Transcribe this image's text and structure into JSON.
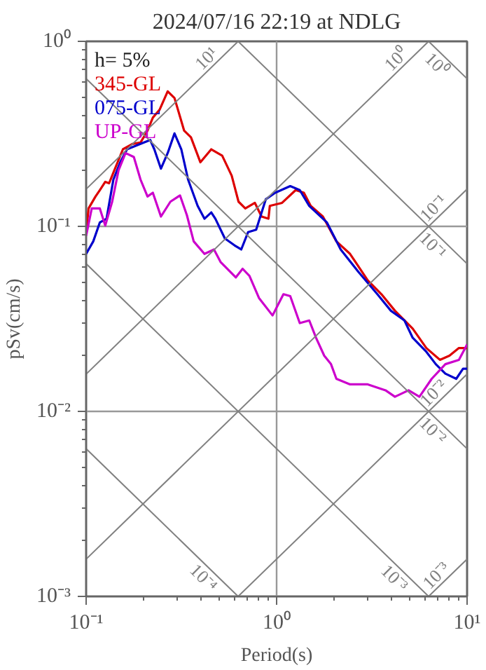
{
  "chart_data": {
    "type": "line",
    "title": "2024/07/16 22:19 at NDLG",
    "xlabel": "Period(s)",
    "ylabel": "pSv(cm/s)",
    "annotations": [
      "h= 5%"
    ],
    "log": "xy",
    "grid": true,
    "legend": "top left",
    "xlim": [
      0.1,
      10
    ],
    "ylim": [
      0.001,
      1
    ],
    "xticks": [
      {
        "value": 0.1,
        "label": "10⁻¹"
      },
      {
        "value": 1,
        "label": "10⁰"
      },
      {
        "value": 10,
        "label": "10¹"
      }
    ],
    "yticks": [
      {
        "value": 0.001,
        "label": "10⁻³"
      },
      {
        "value": 0.01,
        "label": "10⁻²"
      },
      {
        "value": 0.1,
        "label": "10⁻¹"
      },
      {
        "value": 1,
        "label": "10⁰"
      }
    ],
    "series": [
      {
        "name": "345-GL",
        "color": "#dd0000",
        "x": [
          0.1,
          0.103,
          0.112,
          0.118,
          0.126,
          0.132,
          0.139,
          0.156,
          0.175,
          0.193,
          0.21,
          0.224,
          0.243,
          0.268,
          0.291,
          0.327,
          0.355,
          0.398,
          0.454,
          0.518,
          0.581,
          0.631,
          0.685,
          0.769,
          0.834,
          0.906,
          0.921,
          1.068,
          1.259,
          1.39,
          1.51,
          1.75,
          2.06,
          2.43,
          3.01,
          3.55,
          4.18,
          5.18,
          6.11,
          7.2,
          8.08,
          9.06,
          10
        ],
        "values": [
          0.093,
          0.125,
          0.145,
          0.157,
          0.174,
          0.171,
          0.195,
          0.261,
          0.279,
          0.284,
          0.329,
          0.387,
          0.427,
          0.537,
          0.494,
          0.329,
          0.303,
          0.222,
          0.261,
          0.241,
          0.188,
          0.136,
          0.125,
          0.134,
          0.113,
          0.11,
          0.129,
          0.134,
          0.157,
          0.152,
          0.129,
          0.113,
          0.083,
          0.071,
          0.051,
          0.043,
          0.035,
          0.028,
          0.022,
          0.019,
          0.02,
          0.022,
          0.022
        ]
      },
      {
        "name": "075-GL",
        "color": "#0000cc",
        "x": [
          0.1,
          0.109,
          0.118,
          0.128,
          0.139,
          0.151,
          0.164,
          0.193,
          0.217,
          0.228,
          0.247,
          0.268,
          0.291,
          0.316,
          0.343,
          0.385,
          0.418,
          0.454,
          0.477,
          0.535,
          0.601,
          0.652,
          0.708,
          0.781,
          0.877,
          0.984,
          1.179,
          1.323,
          1.484,
          1.837,
          2.17,
          2.68,
          3.38,
          3.98,
          4.69,
          5.18,
          6.11,
          6.85,
          7.69,
          8.77,
          9.52,
          10
        ],
        "values": [
          0.071,
          0.083,
          0.105,
          0.11,
          0.179,
          0.222,
          0.261,
          0.279,
          0.293,
          0.261,
          0.205,
          0.249,
          0.318,
          0.261,
          0.179,
          0.129,
          0.11,
          0.119,
          0.11,
          0.086,
          0.079,
          0.075,
          0.093,
          0.096,
          0.14,
          0.152,
          0.165,
          0.157,
          0.129,
          0.105,
          0.075,
          0.057,
          0.043,
          0.035,
          0.031,
          0.025,
          0.021,
          0.018,
          0.016,
          0.015,
          0.017,
          0.017
        ]
      },
      {
        "name": "UP-GL",
        "color": "#cc00cc",
        "x": [
          0.1,
          0.107,
          0.118,
          0.126,
          0.137,
          0.148,
          0.161,
          0.178,
          0.193,
          0.21,
          0.224,
          0.247,
          0.277,
          0.311,
          0.338,
          0.367,
          0.418,
          0.469,
          0.509,
          0.611,
          0.663,
          0.72,
          0.808,
          0.952,
          1.086,
          1.179,
          1.323,
          1.484,
          1.61,
          1.778,
          1.93,
          2.06,
          2.43,
          3.01,
          3.73,
          4.18,
          4.93,
          5.62,
          6.52,
          7.69,
          9.06,
          10
        ],
        "values": [
          0.089,
          0.125,
          0.125,
          0.101,
          0.136,
          0.201,
          0.249,
          0.237,
          0.179,
          0.145,
          0.152,
          0.113,
          0.136,
          0.147,
          0.115,
          0.083,
          0.071,
          0.075,
          0.064,
          0.053,
          0.059,
          0.054,
          0.041,
          0.033,
          0.043,
          0.042,
          0.03,
          0.031,
          0.025,
          0.02,
          0.018,
          0.015,
          0.014,
          0.014,
          0.013,
          0.012,
          0.013,
          0.012,
          0.015,
          0.018,
          0.019,
          0.023
        ]
      },
      {
        "name": "10¹",
        "color": "#808080",
        "x": [
          0.1,
          0.628
        ],
        "values": [
          0.159,
          1
        ]
      },
      {
        "name": "10⁰",
        "color": "#808080",
        "x": [
          0.1,
          6.28
        ],
        "values": [
          0.0159,
          1
        ]
      },
      {
        "name": "10⁻¹",
        "color": "#808080",
        "x": [
          0.1,
          10
        ],
        "values": [
          0.00159,
          0.159
        ]
      },
      {
        "name": "10⁻²",
        "color": "#808080",
        "x": [
          0.628,
          10
        ],
        "values": [
          0.001,
          0.0159
        ]
      },
      {
        "name": "10⁻³",
        "color": "#808080",
        "x": [
          6.28,
          10
        ],
        "values": [
          0.001,
          0.00159
        ]
      },
      {
        "name": "10⁰",
        "color": "#808080",
        "x": [
          6.28,
          10
        ],
        "values": [
          1,
          0.628
        ]
      },
      {
        "name": "10⁻¹",
        "color": "#808080",
        "x": [
          0.628,
          10
        ],
        "values": [
          1,
          0.0628
        ]
      },
      {
        "name": "10⁻²",
        "color": "#808080",
        "x": [
          0.1,
          10
        ],
        "values": [
          0.628,
          0.00628
        ]
      },
      {
        "name": "10⁻³",
        "color": "#808080",
        "x": [
          0.1,
          6.28
        ],
        "values": [
          0.0628,
          0.001
        ]
      },
      {
        "name": "10⁻⁴",
        "color": "#808080",
        "x": [
          0.1,
          0.628
        ],
        "values": [
          0.00628,
          0.001
        ]
      }
    ]
  }
}
